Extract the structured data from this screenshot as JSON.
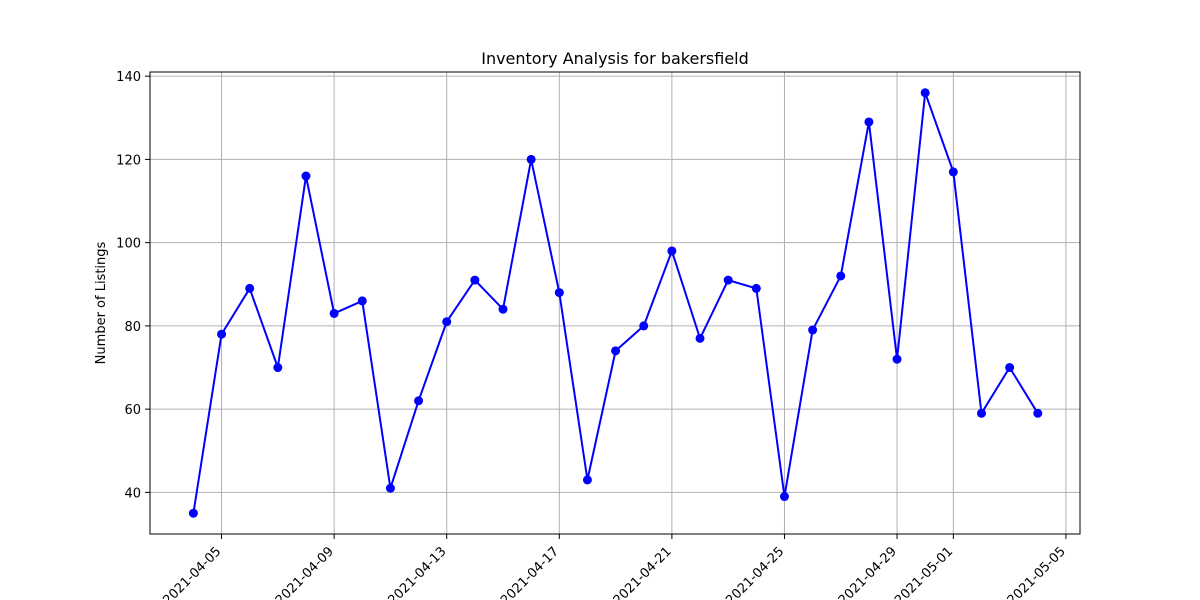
{
  "chart_data": {
    "type": "line",
    "title": "Inventory Analysis for bakersfield",
    "xlabel": "",
    "ylabel": "Number of Listings",
    "x": [
      "2021-04-04",
      "2021-04-05",
      "2021-04-06",
      "2021-04-07",
      "2021-04-08",
      "2021-04-09",
      "2021-04-10",
      "2021-04-11",
      "2021-04-12",
      "2021-04-13",
      "2021-04-14",
      "2021-04-15",
      "2021-04-16",
      "2021-04-17",
      "2021-04-18",
      "2021-04-19",
      "2021-04-20",
      "2021-04-21",
      "2021-04-22",
      "2021-04-23",
      "2021-04-24",
      "2021-04-25",
      "2021-04-26",
      "2021-04-27",
      "2021-04-28",
      "2021-04-29",
      "2021-04-30",
      "2021-05-01",
      "2021-05-02",
      "2021-05-03",
      "2021-05-04"
    ],
    "series": [
      {
        "values": [
          35,
          78,
          89,
          70,
          116,
          83,
          86,
          41,
          62,
          81,
          91,
          84,
          120,
          88,
          43,
          74,
          80,
          98,
          77,
          91,
          89,
          39,
          79,
          92,
          129,
          72,
          136,
          117,
          59,
          70,
          59
        ],
        "color": "#0000ff",
        "marker": "circle"
      }
    ],
    "xticks": [
      "2021-04-05",
      "2021-04-09",
      "2021-04-13",
      "2021-04-17",
      "2021-04-21",
      "2021-04-25",
      "2021-04-29",
      "2021-05-01",
      "2021-05-05"
    ],
    "yticks": [
      40,
      60,
      80,
      100,
      120,
      140
    ],
    "xlim": [
      "2021-04-02T11:00",
      "2021-05-05T12:00"
    ],
    "ylim": [
      30,
      141
    ],
    "grid": true,
    "legend": "none"
  }
}
